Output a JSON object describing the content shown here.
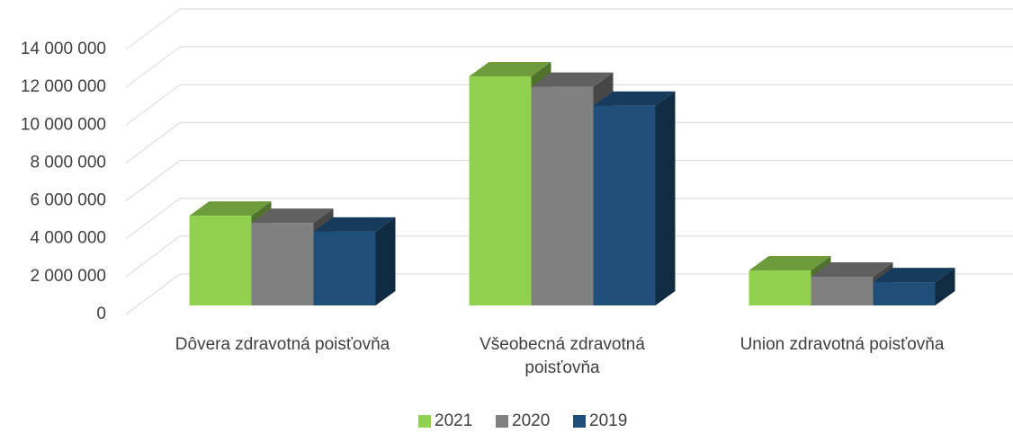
{
  "chart_data": {
    "type": "bar3d",
    "categories": [
      "Dôvera zdravotná poisťovňa",
      "Všeobecná zdravotná poisťovňa",
      "Union zdravotná poisťovňa"
    ],
    "series": [
      {
        "name": "2021",
        "color": "#92d050",
        "values": [
          4740000,
          12100000,
          1850000
        ]
      },
      {
        "name": "2020",
        "color": "#808080",
        "values": [
          4360000,
          11550000,
          1520000
        ]
      },
      {
        "name": "2019",
        "color": "#1f4e79",
        "values": [
          3900000,
          10550000,
          1230000
        ]
      }
    ],
    "ylim": [
      0,
      14000000
    ],
    "yticks": [
      0,
      {
        "value": 2000000,
        "label": "2 000 000"
      },
      {
        "value": 4000000,
        "label": "4 000 000"
      },
      {
        "value": 6000000,
        "label": "6 000 000"
      },
      {
        "value": 8000000,
        "label": "8 000 000"
      },
      {
        "value": 10000000,
        "label": "10 000 000"
      },
      {
        "value": 12000000,
        "label": "12 000 000"
      },
      {
        "value": 14000000,
        "label": "14 000 000"
      }
    ],
    "grid": true,
    "legend": "bottom"
  }
}
